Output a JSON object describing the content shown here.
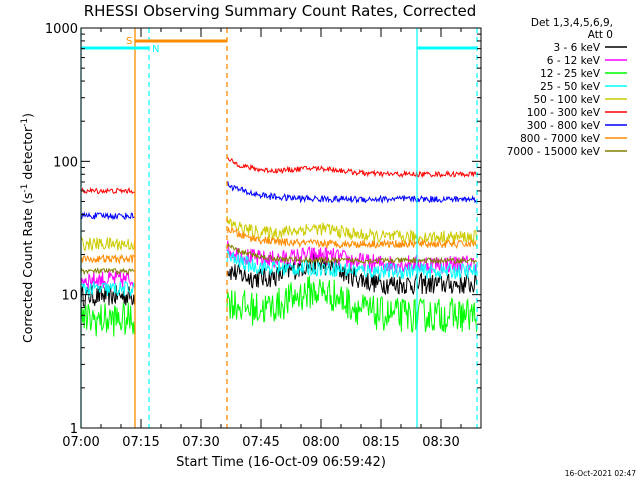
{
  "chart_data": {
    "type": "line",
    "title": "RHESSI Observing Summary Count Rates, Corrected",
    "xlabel": "Start Time (16-Oct-09 06:59:42)",
    "ylabel_main": "Corrected Count Rate (s",
    "ylabel_sup1": "-1",
    "ylabel_mid": " detector",
    "ylabel_sup2": "-1",
    "ylabel_end": ")",
    "yscale": "log",
    "ylim": [
      1,
      1000
    ],
    "y_ticks": [
      {
        "value": 1,
        "label": "1"
      },
      {
        "value": 10,
        "label": "10"
      },
      {
        "value": 100,
        "label": "100"
      },
      {
        "value": 1000,
        "label": "1000"
      }
    ],
    "xlim_minutes": [
      0,
      100
    ],
    "x_ticks": [
      {
        "minute": 0,
        "label": "07:00"
      },
      {
        "minute": 15,
        "label": "07:15"
      },
      {
        "minute": 30,
        "label": "07:30"
      },
      {
        "minute": 45,
        "label": "07:45"
      },
      {
        "minute": 60,
        "label": "08:00"
      },
      {
        "minute": 75,
        "label": "08:15"
      },
      {
        "minute": 90,
        "label": "08:30"
      }
    ],
    "data_gap_minutes": [
      13.5,
      36.5
    ],
    "legend": {
      "header1": "Det 1,3,4,5,6,9,",
      "header2": "Att 0",
      "placement": "right"
    },
    "series": [
      {
        "name": "3 - 6 keV",
        "color": "#000000",
        "before": 9.8,
        "after": 12,
        "bump": 1.4,
        "noise": 0.08
      },
      {
        "name": "6 - 12 keV",
        "color": "#ff00ff",
        "before": 13,
        "after": 17,
        "bump": 1.15,
        "noise": 0.07
      },
      {
        "name": "12 - 25 keV",
        "color": "#00ff00",
        "before": 6.5,
        "after": 7,
        "bump": 1.5,
        "noise": 0.13
      },
      {
        "name": "25 - 50 keV",
        "color": "#00ffff",
        "before": 11,
        "after": 15,
        "bump": 1.05,
        "noise": 0.06
      },
      {
        "name": "50 - 100 keV",
        "color": "#cccc00",
        "before": 24,
        "after": 27,
        "bump": 1.15,
        "noise": 0.05
      },
      {
        "name": "100 - 300 keV",
        "color": "#ff0000",
        "before": 60,
        "after": 80,
        "bump": 1.1,
        "noise": 0.02
      },
      {
        "name": "300 - 800 keV",
        "color": "#0000ff",
        "before": 39,
        "after": 52,
        "bump": 1.0,
        "noise": 0.025
      },
      {
        "name": "800 - 7000 keV",
        "color": "#ff8c00",
        "before": 18.5,
        "after": 24,
        "bump": 1.0,
        "noise": 0.03
      },
      {
        "name": "7000 - 15000 keV",
        "color": "#808000",
        "before": 15,
        "after": 18,
        "bump": 1.0,
        "noise": 0.02
      }
    ],
    "flags": [
      {
        "label": "S",
        "color": "#ff8c00",
        "start": 13.5,
        "end": 36.5
      },
      {
        "label": "N",
        "color": "#00ffff",
        "start": 0,
        "end": 17,
        "second_start": 84,
        "second_end": 99
      }
    ],
    "night_lines_minutes": [
      0,
      17,
      84,
      99
    ],
    "saa_lines_minutes": [
      13.5,
      36.5
    ]
  },
  "footer": {
    "timestamp": "16-Oct-2021 02:47"
  }
}
